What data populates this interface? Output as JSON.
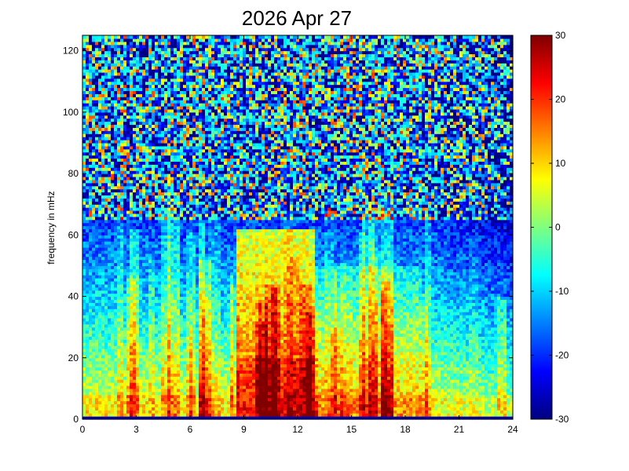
{
  "chart_data": {
    "type": "heatmap",
    "title": "2026 Apr 27",
    "xlabel": "",
    "ylabel": "frequency in mHz",
    "xlim": [
      0,
      24
    ],
    "ylim": [
      0,
      125
    ],
    "x_ticks": [
      0,
      3,
      6,
      9,
      12,
      15,
      18,
      21,
      24
    ],
    "x_tick_labels": [
      "0",
      "3",
      "6",
      "9",
      "12",
      "15",
      "18",
      "21",
      "24"
    ],
    "y_ticks": [
      0,
      20,
      40,
      60,
      80,
      100,
      120
    ],
    "y_tick_labels": [
      "0",
      "20",
      "40",
      "60",
      "80",
      "100",
      "120"
    ],
    "colorbar": {
      "colormap": "jet",
      "range": [
        -30,
        30
      ],
      "ticks": [
        30,
        20,
        10,
        0,
        -10,
        -20,
        -30
      ],
      "tick_labels": [
        "30",
        "20",
        "10",
        "0",
        "-10",
        "-20",
        "-30"
      ]
    },
    "grid": false,
    "structure": {
      "high_power_band": {
        "x_range": [
          8.5,
          13
        ],
        "y_range": [
          0,
          60
        ],
        "value_range": [
          10,
          30
        ]
      },
      "background_low_freq": {
        "y_range": [
          0,
          20
        ],
        "value_range": [
          0,
          15
        ]
      },
      "high_freq_noise": {
        "y_range": [
          70,
          125
        ],
        "value_range": [
          -30,
          30
        ]
      }
    }
  }
}
